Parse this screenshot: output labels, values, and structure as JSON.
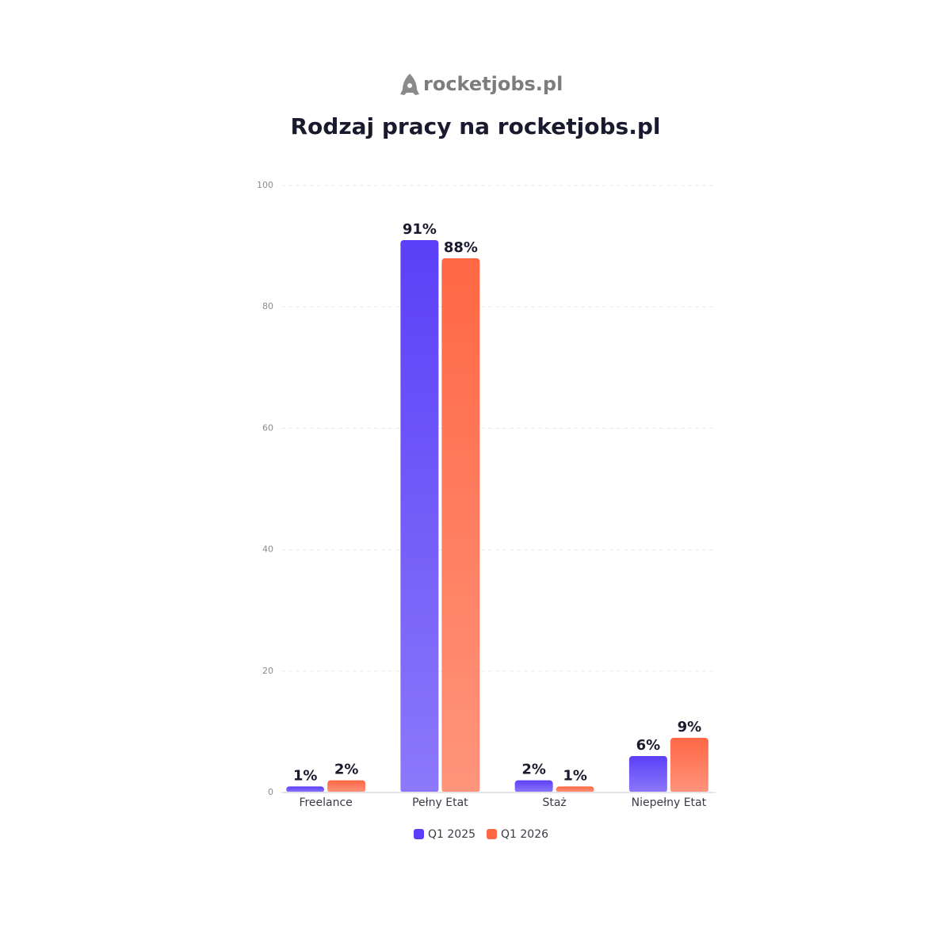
{
  "chart_data": {
    "type": "bar",
    "logo": "rocketjobs.pl",
    "title": "Rodzaj pracy na rocketjobs.pl",
    "categories": [
      "Freelance",
      "Pełny Etat",
      "Staż",
      "Niepełny Etat"
    ],
    "series": [
      {
        "name": "Q1 2025",
        "color": "#5b3ff8",
        "values": [
          1,
          91,
          2,
          6
        ],
        "value_labels": [
          "1%",
          "91%",
          "2%",
          "6%"
        ]
      },
      {
        "name": "Q1 2026",
        "color": "#ff6744",
        "values": [
          2,
          88,
          1,
          9
        ],
        "value_labels": [
          "2%",
          "88%",
          "1%",
          "9%"
        ]
      }
    ],
    "ylim": [
      0,
      100
    ],
    "yticks": [
      0,
      20,
      40,
      60,
      80,
      100
    ],
    "grid": true
  }
}
